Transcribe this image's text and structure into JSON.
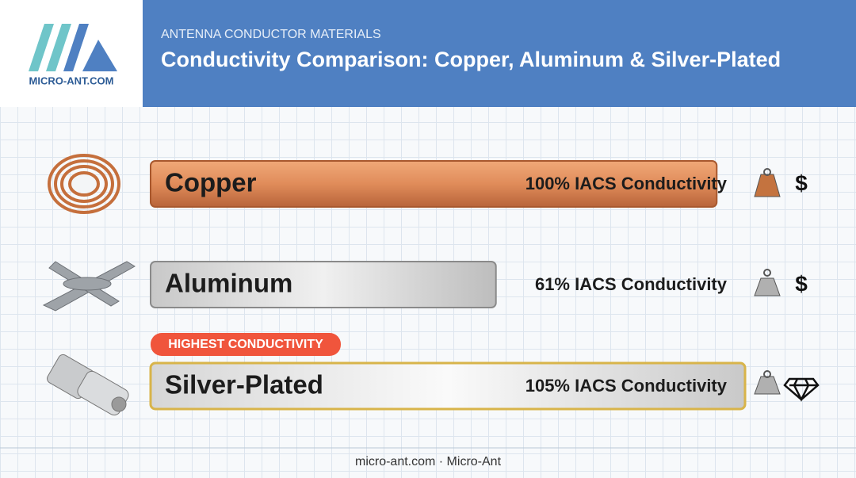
{
  "header": {
    "logo": "MICRO-ANT.COM",
    "kicker": "ANTENNA CONDUCTOR MATERIALS",
    "title": "Conductivity Comparison: Copper, Aluminum & Silver-Plated"
  },
  "chart_data": {
    "type": "bar",
    "orientation": "horizontal",
    "categories": [
      "Copper",
      "Aluminum",
      "Silver-Plated"
    ],
    "values": [
      100,
      61,
      105
    ],
    "value_labels": [
      "100% IACS Conductivity",
      "61% IACS Conductivity",
      "105% IACS Conductivity"
    ],
    "colors": [
      "#d9844f",
      "#b8b8b8",
      "#cfcfcf"
    ],
    "cost_labels": [
      "$",
      "$",
      null
    ],
    "annotation": "HIGHEST CONDUCTIVITY"
  },
  "footer": "micro-ant.com · Micro-Ant"
}
